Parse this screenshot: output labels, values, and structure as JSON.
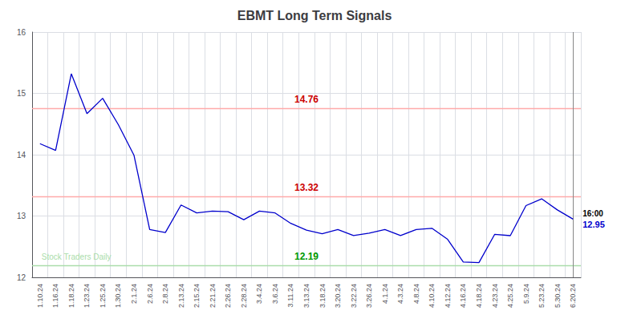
{
  "chart_data": {
    "type": "line",
    "title": "EBMT Long Term Signals",
    "categories": [
      "1.10.24",
      "1.16.24",
      "1.18.24",
      "1.23.24",
      "1.25.24",
      "1.30.24",
      "2.1.24",
      "2.6.24",
      "2.8.24",
      "2.13.24",
      "2.15.24",
      "2.21.24",
      "2.26.24",
      "2.28.24",
      "3.4.24",
      "3.6.24",
      "3.11.24",
      "3.13.24",
      "3.18.24",
      "3.20.24",
      "3.22.24",
      "3.26.24",
      "4.1.24",
      "4.3.24",
      "4.8.24",
      "4.10.24",
      "4.12.24",
      "4.16.24",
      "4.18.24",
      "4.23.24",
      "4.25.24",
      "5.9.24",
      "5.23.24",
      "5.30.24",
      "6.20.24"
    ],
    "values": [
      14.18,
      14.07,
      15.32,
      14.67,
      14.92,
      14.49,
      13.99,
      12.78,
      12.73,
      13.18,
      13.05,
      13.08,
      13.07,
      12.94,
      13.08,
      13.05,
      12.88,
      12.77,
      12.71,
      12.78,
      12.68,
      12.72,
      12.78,
      12.68,
      12.78,
      12.8,
      12.62,
      12.25,
      12.24,
      12.7,
      12.68,
      13.17,
      13.28,
      13.1,
      12.95
    ],
    "color": "#0000cc",
    "ylim": [
      12,
      16
    ],
    "yticks": [
      12,
      13,
      14,
      15,
      16
    ],
    "grid": true,
    "hlines": [
      {
        "value": 14.76,
        "label": "14.76",
        "color": "#ffaaaa",
        "label_color": "#cc0000"
      },
      {
        "value": 13.32,
        "label": "13.32",
        "color": "#ffaaaa",
        "label_color": "#cc0000"
      },
      {
        "value": 12.19,
        "label": "12.19",
        "color": "#aaddaa",
        "label_color": "#009900"
      }
    ],
    "vline": {
      "x": "6.20.24",
      "color": "#888888"
    },
    "watermark": {
      "text": "Stock Traders Daily",
      "color": "#aaddaa"
    },
    "end_annotations": [
      {
        "text": "16:00",
        "color": "#000000"
      },
      {
        "text": "12.95",
        "color": "#0000cc"
      }
    ]
  }
}
